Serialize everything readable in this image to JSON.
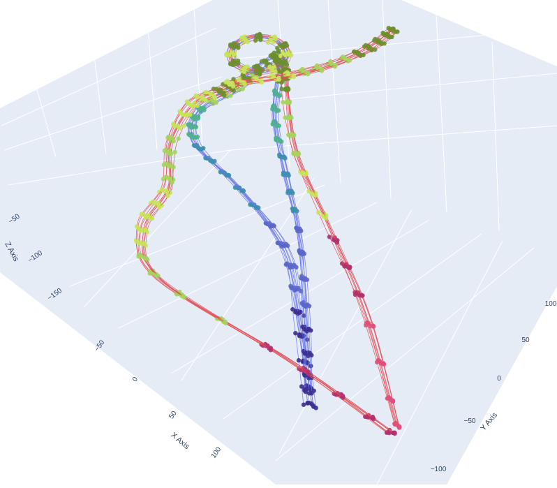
{
  "chart_data": {
    "type": "line",
    "mode": "lines+markers",
    "is_3d": true,
    "scene_background": "#e5ecf6",
    "grid_color": "#ffffff",
    "grid": true,
    "axes": {
      "x": {
        "title": "X Axis",
        "ticks": [
          "−50",
          "0",
          "50",
          "100"
        ],
        "tick_values": [
          -50,
          0,
          50,
          100
        ]
      },
      "y": {
        "title": "Y Axis",
        "ticks": [
          "100",
          "50",
          "0",
          "−50",
          "−100"
        ],
        "tick_values": [
          100,
          50,
          0,
          -50,
          -100
        ]
      },
      "z": {
        "title": "Z Axis",
        "ticks": [
          "−50",
          "−100",
          "−150"
        ],
        "tick_values": [
          -50,
          -100,
          -150
        ]
      }
    },
    "colors": {
      "left_group_line": "#6b78e6",
      "right_group_line": "#e0525a",
      "marker_scale": [
        "#3b2f8f",
        "#5a66c8",
        "#3d8fb0",
        "#4fb38c",
        "#a6d45e",
        "#c8e35a",
        "#6b8f2e",
        "#b0306e",
        "#e0507e"
      ]
    }
  }
}
